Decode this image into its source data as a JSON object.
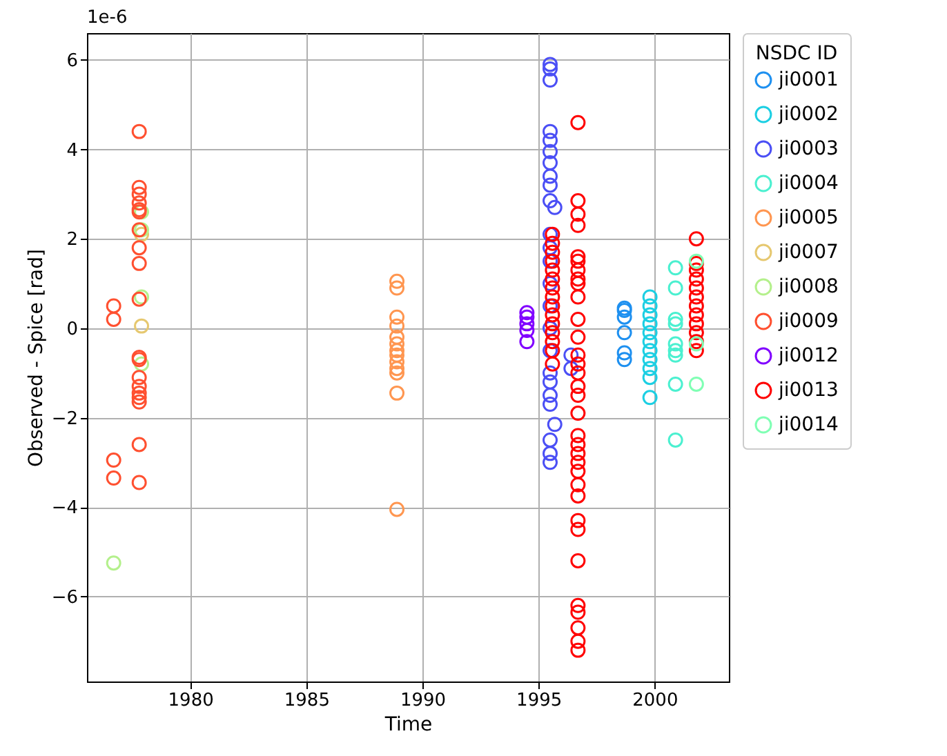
{
  "chart_data": {
    "type": "scatter",
    "xlabel": "Time",
    "ylabel": "Observed - Spice [rad]",
    "legend_title": "NSDC ID",
    "annotations": [
      "1e-6"
    ],
    "xlim": [
      1975.55,
      2003.2
    ],
    "ylim": [
      -7.9,
      6.6
    ],
    "xticks": [
      1980,
      1985,
      1990,
      1995,
      2000
    ],
    "yticks": [
      -6,
      -4,
      -2,
      0,
      2,
      4,
      6
    ],
    "grid": true,
    "legend": "right",
    "marker": "circle",
    "series": [
      {
        "name": "ji0001",
        "color": "#1e90f0",
        "x": [
          1998.7,
          1998.7,
          1998.7,
          1998.7,
          1998.7,
          1998.7
        ],
        "values": [
          0.45,
          0.4,
          0.25,
          -0.1,
          -0.55,
          -0.7
        ]
      },
      {
        "name": "ji0002",
        "color": "#1ccfe3",
        "x": [
          1999.8,
          1999.8,
          1999.8,
          1999.8,
          1999.8,
          1999.8,
          1999.8,
          1999.8,
          1999.8,
          1999.8,
          1999.8
        ],
        "values": [
          0.7,
          0.5,
          0.3,
          0.1,
          -0.1,
          -0.3,
          -0.5,
          -0.7,
          -0.9,
          -1.1,
          -1.55
        ]
      },
      {
        "name": "ji0003",
        "color": "#4b4ff5",
        "x": [
          1995.5,
          1995.5,
          1995.5,
          1995.5,
          1995.5,
          1995.5,
          1995.5,
          1995.5,
          1995.5,
          1995.5,
          1995.7,
          1995.5,
          1995.5,
          1995.5,
          1995.5,
          1995.5,
          1995.5,
          1995.5,
          1995.5,
          1995.5,
          1995.5,
          1995.5,
          1995.7,
          1995.5,
          1995.5,
          1995.5,
          1996.4,
          1996.4
        ],
        "values": [
          5.9,
          5.8,
          5.55,
          4.4,
          4.2,
          3.95,
          3.7,
          3.4,
          3.2,
          2.85,
          2.7,
          2.1,
          1.8,
          1.5,
          1.0,
          0.5,
          0,
          -0.5,
          -1.0,
          -1.2,
          -1.5,
          -1.7,
          -2.15,
          -2.5,
          -2.8,
          -3.0,
          -0.6,
          -0.9
        ]
      },
      {
        "name": "ji0004",
        "color": "#4bf0d0",
        "x": [
          2000.9,
          2000.9,
          2000.9,
          2000.9,
          2000.9,
          2000.9,
          2000.9,
          2000.9,
          2000.9
        ],
        "values": [
          1.35,
          0.9,
          0.2,
          0.1,
          -0.35,
          -0.5,
          -0.6,
          -1.25,
          -2.5
        ]
      },
      {
        "name": "ji0005",
        "color": "#ff9650",
        "x": [
          1988.9,
          1988.9,
          1988.9,
          1988.9,
          1988.9,
          1988.9,
          1988.9,
          1988.9,
          1988.9,
          1988.9,
          1988.9,
          1988.9,
          1988.9
        ],
        "values": [
          1.05,
          0.9,
          0.25,
          0.05,
          -0.2,
          -0.35,
          -0.5,
          -0.6,
          -0.75,
          -0.9,
          -1.0,
          -1.45,
          -4.05
        ]
      },
      {
        "name": "ji0007",
        "color": "#e6c870",
        "x": [
          1977.9,
          1977.9
        ],
        "values": [
          2.1,
          0.05
        ]
      },
      {
        "name": "ji0008",
        "color": "#b4f08c",
        "x": [
          1976.7,
          1977.9,
          1977.9,
          1977.9,
          1977.9
        ],
        "values": [
          -5.25,
          2.6,
          2.2,
          0.7,
          -0.8
        ]
      },
      {
        "name": "ji0009",
        "color": "#ff5030",
        "x": [
          1976.7,
          1976.7,
          1976.7,
          1976.7,
          1977.8,
          1977.8,
          1977.8,
          1977.8,
          1977.8,
          1977.8,
          1977.8,
          1977.8,
          1977.8,
          1977.8,
          1977.8,
          1977.8,
          1977.8,
          1977.8,
          1977.8,
          1977.8,
          1977.8,
          1977.8,
          1977.8
        ],
        "values": [
          0.5,
          0.2,
          -2.95,
          -3.35,
          4.4,
          3.15,
          3.0,
          2.8,
          2.65,
          2.6,
          2.2,
          1.8,
          1.45,
          0.65,
          -0.65,
          -0.7,
          -1.1,
          -1.3,
          -1.45,
          -1.55,
          -1.65,
          -2.6,
          -3.45
        ]
      },
      {
        "name": "ji0012",
        "color": "#8000ff",
        "x": [
          1994.5,
          1994.5,
          1994.5,
          1994.5,
          1994.5
        ],
        "values": [
          0.35,
          0.25,
          0.1,
          -0.05,
          -0.3
        ]
      },
      {
        "name": "ji0013",
        "color": "#ff0000",
        "x": [
          1995.6,
          1995.6,
          1995.6,
          1995.6,
          1995.6,
          1995.6,
          1995.6,
          1995.6,
          1995.6,
          1995.6,
          1995.6,
          1995.6,
          1995.6,
          1995.6,
          1995.6,
          1996.7,
          1996.7,
          1996.7,
          1996.7,
          1996.7,
          1996.7,
          1996.7,
          1996.7,
          1996.7,
          1996.7,
          1996.7,
          1996.7,
          1996.7,
          1996.7,
          1996.7,
          1996.7,
          1996.7,
          1996.7,
          1996.7,
          1996.7,
          1996.7,
          1996.7,
          1996.7,
          1996.7,
          1996.7,
          1996.7,
          1996.7,
          1996.7,
          1996.7,
          1996.7,
          1996.7,
          1996.7,
          1996.7,
          2001.8,
          2001.8,
          2001.8,
          2001.8,
          2001.8,
          2001.8,
          2001.8,
          2001.8,
          2001.8,
          2001.8,
          2001.8,
          2001.8
        ],
        "values": [
          2.1,
          1.9,
          1.7,
          1.5,
          1.3,
          1.1,
          0.9,
          0.7,
          0.5,
          0.3,
          0.1,
          -0.1,
          -0.3,
          -0.5,
          -0.8,
          4.6,
          2.85,
          2.55,
          2.3,
          1.6,
          1.5,
          1.3,
          1.1,
          1.0,
          0.7,
          0.2,
          -0.2,
          -0.6,
          -0.8,
          -1.0,
          -1.3,
          -1.5,
          -1.9,
          -2.4,
          -2.6,
          -2.8,
          -3.0,
          -3.2,
          -3.5,
          -3.75,
          -4.3,
          -4.5,
          -5.2,
          -6.2,
          -6.35,
          -6.7,
          -7.0,
          -7.2,
          2.0,
          1.45,
          1.3,
          1.1,
          0.9,
          0.7,
          0.5,
          0.3,
          0.1,
          -0.1,
          -0.3,
          -0.5
        ]
      },
      {
        "name": "ji0014",
        "color": "#80ffb4",
        "x": [
          2001.8,
          2001.8,
          2001.8
        ],
        "values": [
          1.5,
          -0.35,
          -1.25
        ]
      }
    ]
  }
}
